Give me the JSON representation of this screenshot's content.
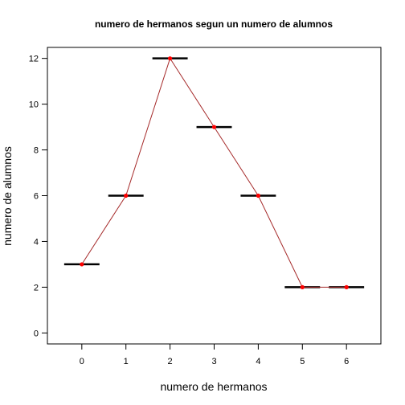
{
  "chart_data": {
    "type": "line",
    "title": "numero de hermanos segun un numero de alumnos",
    "xlabel": "numero de hermanos",
    "ylabel": "numero de alumnos",
    "x": [
      0,
      1,
      2,
      3,
      4,
      5,
      6
    ],
    "y": [
      3,
      6,
      12,
      9,
      6,
      2,
      2
    ],
    "x_ticks": [
      "0",
      "1",
      "2",
      "3",
      "4",
      "5",
      "6"
    ],
    "y_ticks": [
      "0",
      "2",
      "4",
      "6",
      "8",
      "10",
      "12"
    ],
    "xlim": [
      -0.78,
      6.78
    ],
    "ylim": [
      -0.48,
      12.48
    ],
    "grid": false,
    "bar_marks": "horizontal segments at each value",
    "colors": {
      "line": "#a52a2a",
      "points": "#ff0000",
      "bars": "#000000",
      "frame": "#000000"
    }
  }
}
